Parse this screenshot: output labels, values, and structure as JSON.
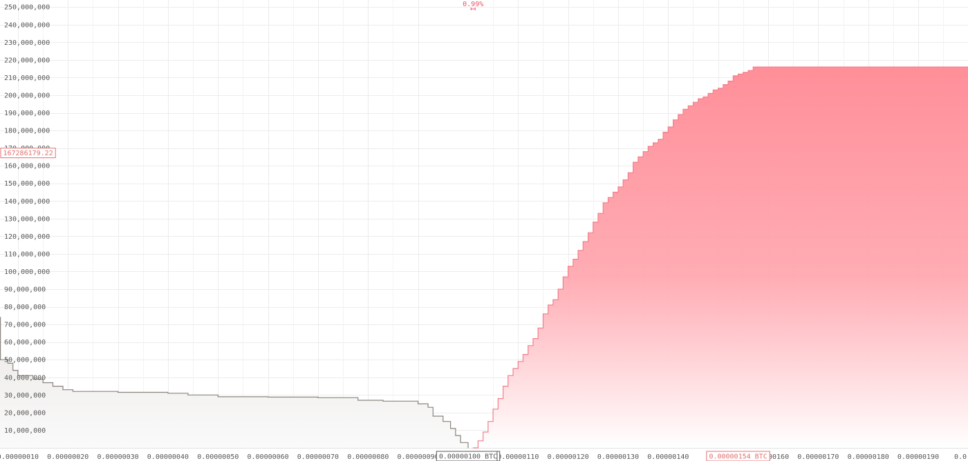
{
  "chart_data": {
    "type": "area",
    "title": "",
    "xlabel": "",
    "ylabel": "",
    "xlim": [
      6.42e-08,
      1.9995e-06
    ],
    "ylim": [
      0,
      254000000
    ],
    "grid": true,
    "legend": "none",
    "x_ticks": [
      {
        "value": 1e-07,
        "label": "0.00000010"
      },
      {
        "value": 2e-07,
        "label": "0.00000020"
      },
      {
        "value": 3e-07,
        "label": "0.00000030"
      },
      {
        "value": 4e-07,
        "label": "0.00000040"
      },
      {
        "value": 5e-07,
        "label": "0.00000050"
      },
      {
        "value": 6e-07,
        "label": "0.00000060"
      },
      {
        "value": 7e-07,
        "label": "0.00000070"
      },
      {
        "value": 8e-07,
        "label": "0.00000080"
      },
      {
        "value": 9e-07,
        "label": "0.00000090"
      },
      {
        "value": 1.1e-06,
        "label": "0.00000110"
      },
      {
        "value": 1.2e-06,
        "label": "0.00000120"
      },
      {
        "value": 1.3e-06,
        "label": "0.00000130"
      },
      {
        "value": 1.4e-06,
        "label": "0.00000140"
      },
      {
        "value": 1.5e-06,
        "label": "0.0"
      },
      {
        "value": 1.6e-06,
        "label": "0.00000160"
      },
      {
        "value": 1.7e-06,
        "label": "0.00000170"
      },
      {
        "value": 1.8e-06,
        "label": "0.00000180"
      },
      {
        "value": 1.9e-06,
        "label": "0.00000190"
      },
      {
        "value": 2e-06,
        "label": "0.0"
      }
    ],
    "y_ticks": [
      {
        "value": 10000000,
        "label": "10,000,000"
      },
      {
        "value": 20000000,
        "label": "20,000,000"
      },
      {
        "value": 30000000,
        "label": "30,000,000"
      },
      {
        "value": 40000000,
        "label": "40,000,000"
      },
      {
        "value": 50000000,
        "label": "50,000,000"
      },
      {
        "value": 60000000,
        "label": "60,000,000"
      },
      {
        "value": 70000000,
        "label": "70,000,000"
      },
      {
        "value": 80000000,
        "label": "80,000,000"
      },
      {
        "value": 90000000,
        "label": "90,000,000"
      },
      {
        "value": 100000000,
        "label": "100,000,000"
      },
      {
        "value": 110000000,
        "label": "110,000,000"
      },
      {
        "value": 120000000,
        "label": "120,000,000"
      },
      {
        "value": 130000000,
        "label": "130,000,000"
      },
      {
        "value": 140000000,
        "label": "140,000,000"
      },
      {
        "value": 150000000,
        "label": "150,000,000"
      },
      {
        "value": 160000000,
        "label": "160,000,000"
      },
      {
        "value": 170000000,
        "label": "170,000,000"
      },
      {
        "value": 180000000,
        "label": "180,000,000"
      },
      {
        "value": 190000000,
        "label": "190,000,000"
      },
      {
        "value": 200000000,
        "label": "200,000,000"
      },
      {
        "value": 210000000,
        "label": "210,000,000"
      },
      {
        "value": 220000000,
        "label": "220,000,000"
      },
      {
        "value": 230000000,
        "label": "230,000,000"
      },
      {
        "value": 240000000,
        "label": "240,000,000"
      },
      {
        "value": 250000000,
        "label": "250,000,000"
      }
    ],
    "series": [
      {
        "side": "bid",
        "line_color": "#8a847c",
        "fill_color": "#f0eeec",
        "points": [
          [
            6.4e-08,
            74000000
          ],
          [
            6.5e-08,
            50000000
          ],
          [
            8e-08,
            48000000
          ],
          [
            9e-08,
            44000000
          ],
          [
            1e-07,
            41000000
          ],
          [
            1.3e-07,
            39000000
          ],
          [
            1.5e-07,
            37000000
          ],
          [
            1.7e-07,
            35000000
          ],
          [
            1.9e-07,
            33000000
          ],
          [
            2.1e-07,
            32000000
          ],
          [
            3e-07,
            31500000
          ],
          [
            4e-07,
            31000000
          ],
          [
            4.4e-07,
            30000000
          ],
          [
            5e-07,
            29000000
          ],
          [
            6e-07,
            28800000
          ],
          [
            7e-07,
            28500000
          ],
          [
            7.8e-07,
            27000000
          ],
          [
            8.3e-07,
            26500000
          ],
          [
            9e-07,
            25000000
          ],
          [
            9.2e-07,
            23000000
          ],
          [
            9.3e-07,
            18000000
          ],
          [
            9.5e-07,
            15000000
          ],
          [
            9.65e-07,
            11000000
          ],
          [
            9.75e-07,
            7000000
          ],
          [
            9.85e-07,
            3000000
          ],
          [
            1e-06,
            0
          ]
        ]
      },
      {
        "side": "ask",
        "line_color": "#f27d8a",
        "fill_color": "#ff8f99",
        "points": [
          [
            1.01e-06,
            0
          ],
          [
            1.02e-06,
            4000000
          ],
          [
            1.03e-06,
            9000000
          ],
          [
            1.04e-06,
            15000000
          ],
          [
            1.05e-06,
            22000000
          ],
          [
            1.06e-06,
            28000000
          ],
          [
            1.07e-06,
            35000000
          ],
          [
            1.08e-06,
            41000000
          ],
          [
            1.09e-06,
            45000000
          ],
          [
            1.1e-06,
            49000000
          ],
          [
            1.11e-06,
            53000000
          ],
          [
            1.12e-06,
            58000000
          ],
          [
            1.13e-06,
            62000000
          ],
          [
            1.14e-06,
            68000000
          ],
          [
            1.15e-06,
            76000000
          ],
          [
            1.16e-06,
            81000000
          ],
          [
            1.17e-06,
            84000000
          ],
          [
            1.18e-06,
            90000000
          ],
          [
            1.19e-06,
            97000000
          ],
          [
            1.2e-06,
            103000000
          ],
          [
            1.21e-06,
            107000000
          ],
          [
            1.22e-06,
            112000000
          ],
          [
            1.23e-06,
            117000000
          ],
          [
            1.24e-06,
            122000000
          ],
          [
            1.25e-06,
            128000000
          ],
          [
            1.26e-06,
            133000000
          ],
          [
            1.27e-06,
            139000000
          ],
          [
            1.28e-06,
            142000000
          ],
          [
            1.29e-06,
            145000000
          ],
          [
            1.3e-06,
            148000000
          ],
          [
            1.31e-06,
            152000000
          ],
          [
            1.32e-06,
            156000000
          ],
          [
            1.33e-06,
            162000000
          ],
          [
            1.34e-06,
            165000000
          ],
          [
            1.35e-06,
            168000000
          ],
          [
            1.36e-06,
            171000000
          ],
          [
            1.37e-06,
            173000000
          ],
          [
            1.38e-06,
            175000000
          ],
          [
            1.39e-06,
            179000000
          ],
          [
            1.4e-06,
            182000000
          ],
          [
            1.41e-06,
            186000000
          ],
          [
            1.42e-06,
            189000000
          ],
          [
            1.43e-06,
            192000000
          ],
          [
            1.44e-06,
            194000000
          ],
          [
            1.45e-06,
            196000000
          ],
          [
            1.46e-06,
            198000000
          ],
          [
            1.47e-06,
            199000000
          ],
          [
            1.48e-06,
            201000000
          ],
          [
            1.49e-06,
            203000000
          ],
          [
            1.5e-06,
            204000000
          ],
          [
            1.51e-06,
            206000000
          ],
          [
            1.52e-06,
            208000000
          ],
          [
            1.53e-06,
            211000000
          ],
          [
            1.54e-06,
            212000000
          ],
          [
            1.55e-06,
            213000000
          ],
          [
            1.56e-06,
            214000000
          ],
          [
            1.57e-06,
            216000000
          ]
        ]
      }
    ],
    "markers": {
      "y_cursor": {
        "label": "167286179.22",
        "value": 167286179.22,
        "color": "#e07070"
      },
      "bid_price": {
        "label": "0.00000100 BTC",
        "value": 1e-06,
        "color": "#555555"
      },
      "ask_price": {
        "label": "0.00000154 BTC",
        "value": 1.54e-06,
        "color": "#e07070"
      },
      "spread": {
        "label": "0.99%",
        "value": 1.01e-06,
        "color": "#ee5566"
      }
    }
  }
}
